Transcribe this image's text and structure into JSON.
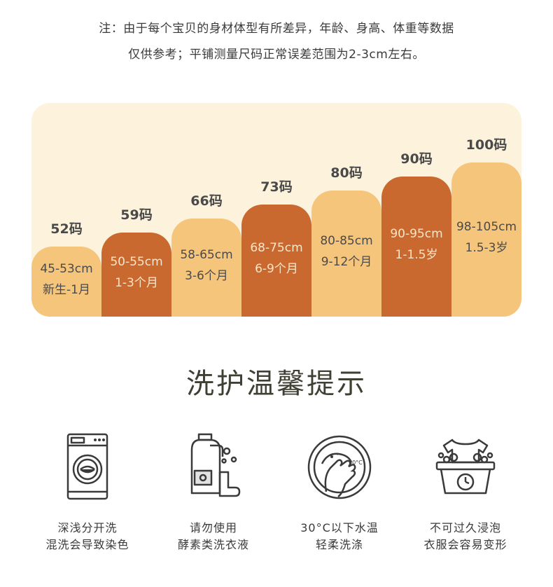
{
  "note": {
    "line1": "注：由于每个宝贝的身材体型有所差异，年龄、身高、体重等数据",
    "line2": "仅供参考；平铺测量尺码正常误差范围为2-3cm左右。"
  },
  "sizes": [
    {
      "label": "52码",
      "height": "45-53cm",
      "age": "新生-1月",
      "tone": "light"
    },
    {
      "label": "59码",
      "height": "50-55cm",
      "age": "1-3个月",
      "tone": "dark"
    },
    {
      "label": "66码",
      "height": "58-65cm",
      "age": "3-6个月",
      "tone": "light"
    },
    {
      "label": "73码",
      "height": "68-75cm",
      "age": "6-9个月",
      "tone": "dark"
    },
    {
      "label": "80码",
      "height": "80-85cm",
      "age": "9-12个月",
      "tone": "light"
    },
    {
      "label": "90码",
      "height": "90-95cm",
      "age": "1-1.5岁",
      "tone": "dark"
    },
    {
      "label": "100码",
      "height": "98-105cm",
      "age": "1.5-3岁",
      "tone": "light"
    }
  ],
  "colors": {
    "light_bar": "#f5c57c",
    "dark_bar": "#c9692f",
    "panel": "#fdf2dc"
  },
  "care": {
    "title": "洗护温馨提示",
    "tips": [
      {
        "icon": "washing-machine-icon",
        "line1": "深浅分开洗",
        "line2": "混洗会导致染色"
      },
      {
        "icon": "detergent-bottle-icon",
        "line1": "请勿使用",
        "line2": "酵素类洗衣液"
      },
      {
        "icon": "hand-wash-30c-icon",
        "line1": "30°C以下水温",
        "line2": "轻柔洗涤"
      },
      {
        "icon": "no-soaking-basin-icon",
        "line1": "不可过久浸泡",
        "line2": "衣服会容易变形"
      }
    ]
  }
}
